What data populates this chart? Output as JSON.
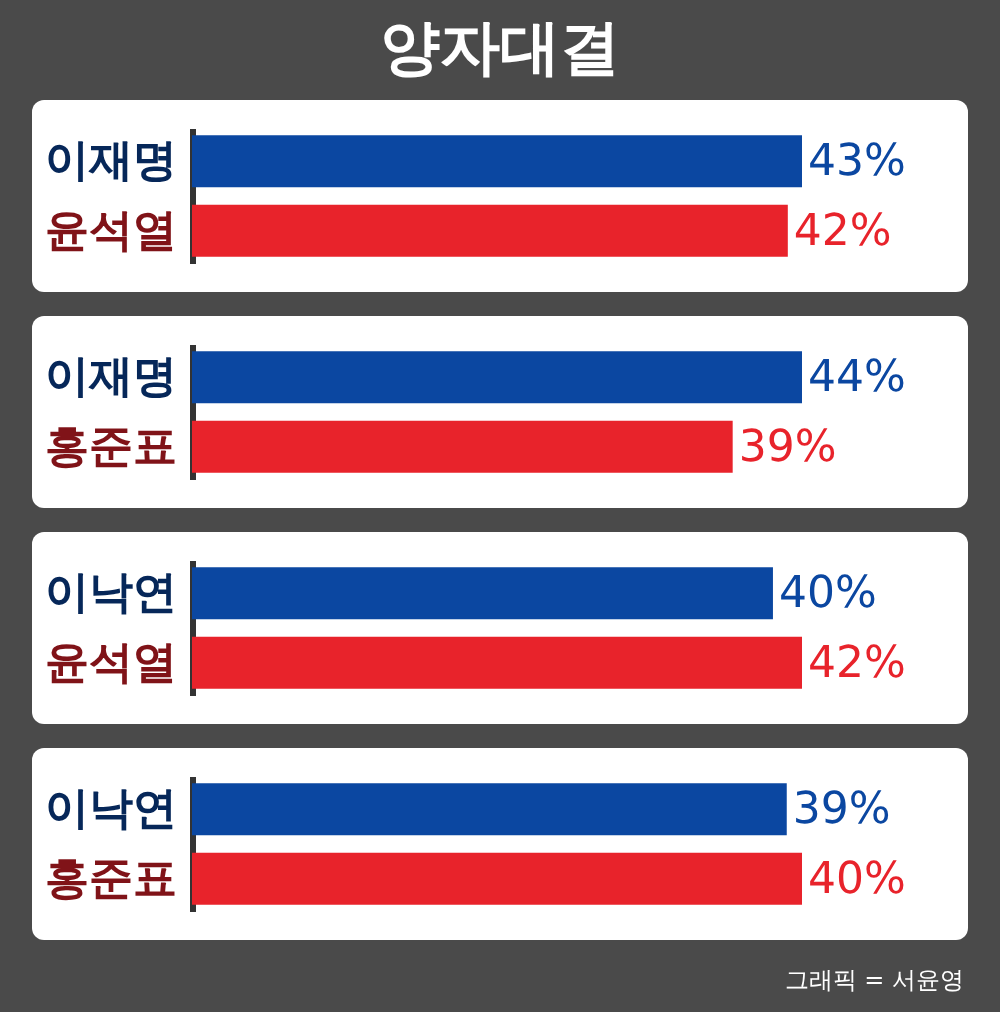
{
  "chart_data": [
    {
      "type": "bar",
      "title": "양자대결",
      "orientation": "horizontal",
      "categories": [
        "이재명",
        "윤석열"
      ],
      "values": [
        43,
        42
      ],
      "colors": [
        "#0b47a1",
        "#e8232b"
      ],
      "value_labels": [
        "43%",
        "42%"
      ],
      "tick_labels": "y"
    },
    {
      "type": "bar",
      "orientation": "horizontal",
      "categories": [
        "이재명",
        "홍준표"
      ],
      "values": [
        44,
        39
      ],
      "colors": [
        "#0b47a1",
        "#e8232b"
      ],
      "value_labels": [
        "44%",
        "39%"
      ],
      "tick_labels": "y"
    },
    {
      "type": "bar",
      "orientation": "horizontal",
      "categories": [
        "이낙연",
        "윤석열"
      ],
      "values": [
        40,
        42
      ],
      "colors": [
        "#0b47a1",
        "#e8232b"
      ],
      "value_labels": [
        "40%",
        "42%"
      ],
      "tick_labels": "y"
    },
    {
      "type": "bar",
      "orientation": "horizontal",
      "categories": [
        "이낙연",
        "홍준표"
      ],
      "values": [
        39,
        40
      ],
      "colors": [
        "#0b47a1",
        "#e8232b"
      ],
      "value_labels": [
        "39%",
        "40%"
      ],
      "tick_labels": "y",
      "annotations": [
        "그래픽 = 서윤영"
      ]
    }
  ]
}
